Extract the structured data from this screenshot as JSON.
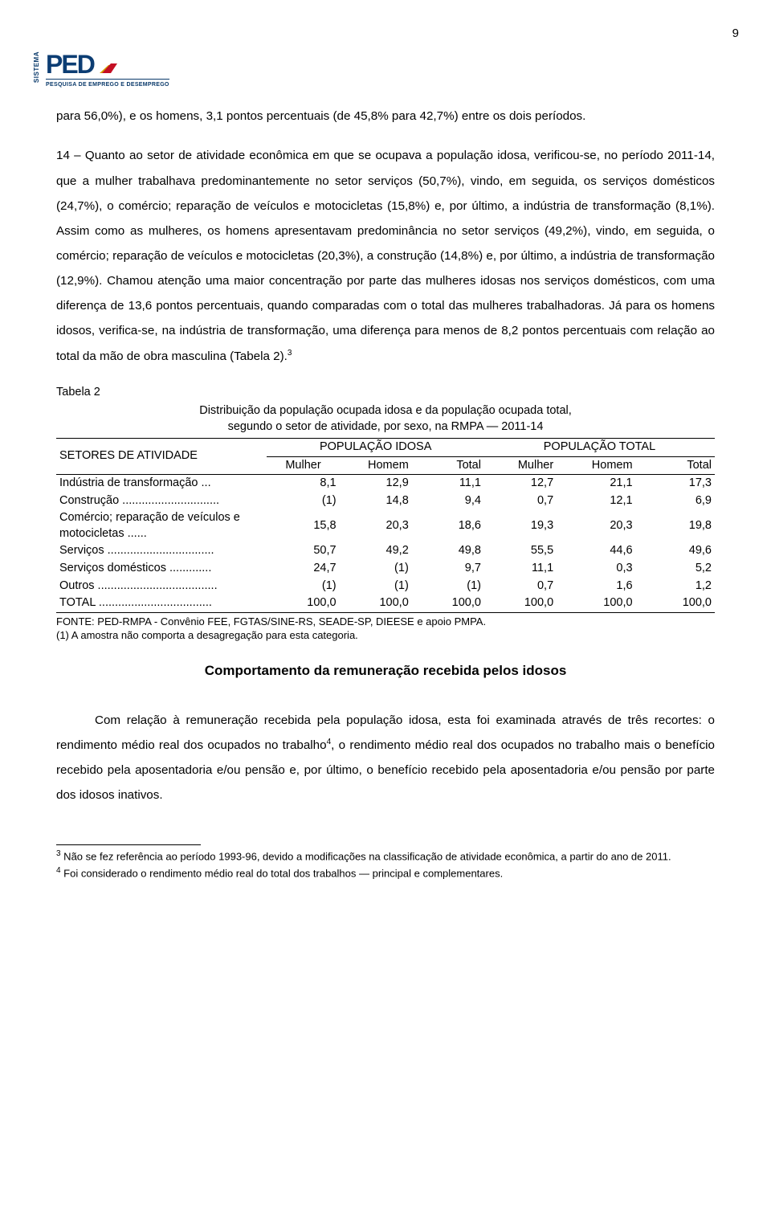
{
  "page_number": "9",
  "logo": {
    "sistema": "SISTEMA",
    "ped": "PED",
    "sub": "PESQUISA DE EMPREGO E DESEMPREGO",
    "arrow_colors": {
      "back": "#d6a100",
      "front": "#c40f24"
    },
    "text_color": "#0c3d73"
  },
  "para1": "para 56,0%), e os homens, 3,1 pontos percentuais (de 45,8% para 42,7%) entre os dois períodos.",
  "para2_prefix": "14 – Quanto ao setor de atividade econômica em que se ocupava a população idosa, verificou-se, no período 2011-14, que a mulher trabalhava predominantemente no setor serviços (50,7%), vindo, em seguida, os serviços domésticos (24,7%), o comércio; reparação de veículos e motocicletas (15,8%) e, por último, a indústria de transformação (8,1%). Assim como as mulheres, os homens apresentavam predominância no setor serviços (49,2%), vindo, em seguida, o comércio; reparação de veículos e motocicletas (20,3%), a construção (14,8%) e, por último, a indústria de transformação (12,9%). Chamou atenção uma maior concentração por parte das mulheres idosas nos serviços domésticos, com uma diferença de 13,6 pontos percentuais, quando comparadas com o total das mulheres trabalhadoras. Já para os homens idosos, verifica-se, na indústria de transformação, uma diferença para menos de 8,2 pontos percentuais com relação ao total da mão de obra masculina (Tabela 2).",
  "para2_sup": "3",
  "table": {
    "label": "Tabela 2",
    "title_line1": "Distribuição da população ocupada idosa e da população ocupada total,",
    "title_line2": "segundo o setor de atividade, por sexo, na RMPA — 2011-14",
    "row_header": "SETORES DE ATIVIDADE",
    "group1": "POPULAÇÃO IDOSA",
    "group2": "POPULAÇÃO TOTAL",
    "subcols": [
      "Mulher",
      "Homem",
      "Total",
      "Mulher",
      "Homem",
      "Total"
    ],
    "rows": [
      {
        "label": "Indústria de transformação ...",
        "vals": [
          "8,1",
          "12,9",
          "11,1",
          "12,7",
          "21,1",
          "17,3"
        ]
      },
      {
        "label": "Construção ..............................",
        "vals": [
          "(1)",
          "14,8",
          "9,4",
          "0,7",
          "12,1",
          "6,9"
        ]
      },
      {
        "label": "Comércio; reparação de veículos e motocicletas ......",
        "vals": [
          "15,8",
          "20,3",
          "18,6",
          "19,3",
          "20,3",
          "19,8"
        ]
      },
      {
        "label": "Serviços .................................",
        "vals": [
          "50,7",
          "49,2",
          "49,8",
          "55,5",
          "44,6",
          "49,6"
        ]
      },
      {
        "label": "Serviços domésticos .............",
        "vals": [
          "24,7",
          "(1)",
          "9,7",
          "11,1",
          "0,3",
          "5,2"
        ]
      },
      {
        "label": "Outros .....................................",
        "vals": [
          "(1)",
          "(1)",
          "(1)",
          "0,7",
          "1,6",
          "1,2"
        ]
      },
      {
        "label": "TOTAL ...................................",
        "vals": [
          "100,0",
          "100,0",
          "100,0",
          "100,0",
          "100,0",
          "100,0"
        ],
        "total": true
      }
    ],
    "note1": "FONTE: PED-RMPA - Convênio FEE, FGTAS/SINE-RS, SEADE-SP, DIEESE e apoio PMPA.",
    "note2": "(1) A amostra não comporta a desagregação para esta categoria."
  },
  "section_heading": "Comportamento da remuneração recebida pelos idosos",
  "para3_a": "Com relação à remuneração recebida pela população idosa, esta foi examinada através de três recortes: o rendimento médio real dos ocupados no trabalho",
  "para3_sup": "4",
  "para3_b": ", o rendimento médio real dos ocupados no trabalho mais o benefício recebido pela aposentadoria e/ou pensão e, por último, o benefício recebido pela aposentadoria e/ou pensão por parte dos idosos inativos.",
  "footnotes": {
    "fn3_sup": "3",
    "fn3": " Não se fez referência ao período 1993-96, devido a modificações na classificação de atividade econômica, a partir do ano de 2011.",
    "fn4_sup": "4",
    "fn4": " Foi considerado o rendimento médio real do total dos trabalhos — principal e complementares."
  }
}
